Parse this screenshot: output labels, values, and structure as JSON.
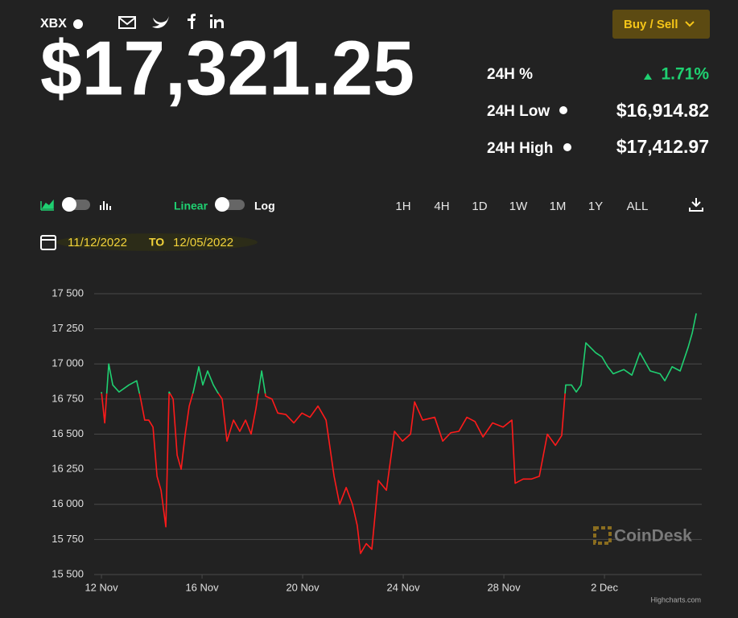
{
  "header": {
    "symbol": "XBX",
    "price": "$17,321.25",
    "stats": [
      {
        "label": "24H %",
        "value": "1.71%"
      },
      {
        "label": "24H Low",
        "value": "$16,914.82"
      },
      {
        "label": "24H High",
        "value": "$17,412.97"
      }
    ],
    "button": "Buy / Sell"
  },
  "controls": {
    "scale_linear": "Linear",
    "scale_log": "Log",
    "ranges": [
      "1H",
      "4H",
      "1D",
      "1W",
      "1M",
      "1Y",
      "ALL"
    ],
    "date_from": "11/12/2022",
    "date_sep": "TO",
    "date_to": "12/05/2022"
  },
  "chart_data": {
    "type": "line",
    "x": [
      0,
      0.13,
      0.29,
      0.45,
      0.7,
      1.09,
      1.4,
      1.56,
      1.72,
      1.88,
      2.05,
      2.21,
      2.37,
      2.56,
      2.69,
      2.85,
      3.01,
      3.17,
      3.33,
      3.49,
      3.65,
      3.87,
      4.03,
      4.22,
      4.45,
      4.61,
      4.8,
      4.99,
      5.25,
      5.5,
      5.73,
      5.95,
      6.14,
      6.37,
      6.53,
      6.78,
      7.01,
      7.33,
      7.65,
      7.97,
      8.29,
      8.61,
      8.93,
      9.25,
      9.47,
      9.73,
      9.98,
      10.17,
      10.3,
      10.53,
      10.75,
      11.01,
      11.33,
      11.65,
      11.97,
      12.29,
      12.45,
      12.77,
      13.25,
      13.57,
      13.89,
      14.21,
      14.53,
      14.85,
      15.17,
      15.55,
      15.97,
      16.32,
      16.45,
      16.77,
      17.09,
      17.41,
      17.73,
      18.05,
      18.3,
      18.46,
      18.69,
      18.88,
      19.07,
      19.26,
      19.65,
      19.9,
      20.13,
      20.35,
      20.77,
      21.09,
      21.41,
      21.82,
      22.21,
      22.4,
      22.69,
      23.01,
      23.33,
      23.49,
      23.65
    ],
    "values": [
      16800,
      16580,
      17000,
      16850,
      16800,
      16850,
      16880,
      16750,
      16600,
      16600,
      16550,
      16200,
      16100,
      15840,
      16800,
      16750,
      16350,
      16250,
      16500,
      16700,
      16800,
      16980,
      16850,
      16950,
      16850,
      16800,
      16750,
      16450,
      16600,
      16520,
      16600,
      16500,
      16680,
      16950,
      16770,
      16750,
      16650,
      16640,
      16580,
      16650,
      16620,
      16700,
      16600,
      16200,
      16000,
      16120,
      16000,
      15850,
      15650,
      15720,
      15680,
      16170,
      16100,
      16520,
      16450,
      16500,
      16730,
      16600,
      16620,
      16450,
      16510,
      16520,
      16620,
      16590,
      16480,
      16580,
      16550,
      16600,
      16150,
      16180,
      16180,
      16200,
      16500,
      16420,
      16490,
      16850,
      16850,
      16800,
      16850,
      17150,
      17080,
      17050,
      16980,
      16930,
      16960,
      16920,
      17080,
      16950,
      16930,
      16880,
      16980,
      16950,
      17120,
      17220,
      17360
    ],
    "color_above": "#1fd071",
    "color_below": "#ff1a1a",
    "zone_threshold": 16790,
    "xlim": [
      -0.29,
      23.87
    ],
    "xticks": [
      {
        "value": 0,
        "label": "12 Nov"
      },
      {
        "value": 4,
        "label": "16 Nov"
      },
      {
        "value": 8,
        "label": "20 Nov"
      },
      {
        "value": 12,
        "label": "24 Nov"
      },
      {
        "value": 16,
        "label": "28 Nov"
      },
      {
        "value": 20,
        "label": "2 Dec"
      }
    ],
    "ylim": [
      15500,
      17500
    ],
    "yticks": [
      {
        "value": 15500,
        "label": "15 500"
      },
      {
        "value": 15750,
        "label": "15 750"
      },
      {
        "value": 16000,
        "label": "16 000"
      },
      {
        "value": 16250,
        "label": "16 250"
      },
      {
        "value": 16500,
        "label": "16 500"
      },
      {
        "value": 16750,
        "label": "16 750"
      },
      {
        "value": 17000,
        "label": "17 000"
      },
      {
        "value": 17250,
        "label": "17 250"
      },
      {
        "value": 17500,
        "label": "17 500"
      }
    ],
    "grid": true,
    "watermark": "CoinDesk",
    "credits": "Highcharts.com"
  }
}
